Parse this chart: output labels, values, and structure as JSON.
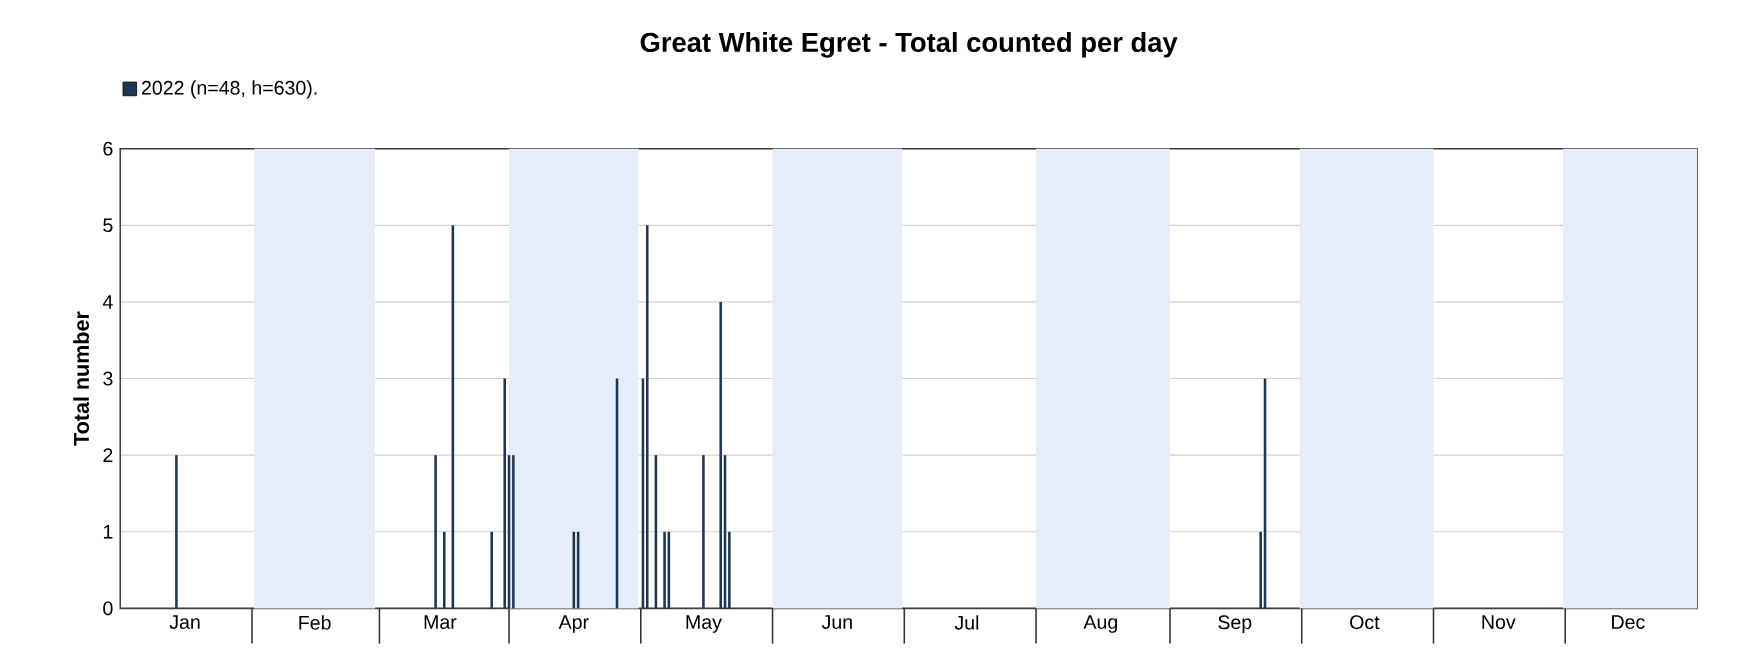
{
  "chart_data": {
    "type": "bar",
    "title": "Great White Egret - Total counted per day",
    "ylabel": "Total number",
    "x": [
      "2022-01-14",
      "2022-03-15",
      "2022-03-17",
      "2022-03-19",
      "2022-03-28",
      "2022-03-31",
      "2022-04-01",
      "2022-04-02",
      "2022-04-16",
      "2022-04-17",
      "2022-04-26",
      "2022-05-02",
      "2022-05-03",
      "2022-05-05",
      "2022-05-07",
      "2022-05-08",
      "2022-05-16",
      "2022-05-20",
      "2022-05-21",
      "2022-05-22",
      "2022-09-22",
      "2022-09-23"
    ],
    "series": [
      {
        "name": "2022 (n=48, h=630).",
        "color": "#1f3550",
        "values": [
          2,
          2,
          1,
          5,
          1,
          3,
          2,
          2,
          1,
          1,
          3,
          3,
          5,
          2,
          1,
          1,
          2,
          4,
          2,
          1,
          1,
          3
        ]
      }
    ],
    "xlim": [
      "2022-01-01",
      "2023-01-01"
    ],
    "xticks": [
      {
        "value": "2022-01-16",
        "label": "Jan"
      },
      {
        "value": "2022-02-15",
        "label": "Feb"
      },
      {
        "value": "2022-03-16",
        "label": "Mar"
      },
      {
        "value": "2022-04-16",
        "label": "Apr"
      },
      {
        "value": "2022-05-16",
        "label": "May"
      },
      {
        "value": "2022-06-16",
        "label": "Jun"
      },
      {
        "value": "2022-07-16",
        "label": "Jul"
      },
      {
        "value": "2022-08-16",
        "label": "Aug"
      },
      {
        "value": "2022-09-16",
        "label": "Sep"
      },
      {
        "value": "2022-10-16",
        "label": "Oct"
      },
      {
        "value": "2022-11-16",
        "label": "Nov"
      },
      {
        "value": "2022-12-16",
        "label": "Dec"
      }
    ],
    "ylim": [
      0,
      6
    ],
    "yticks": [
      0,
      1,
      2,
      3,
      4,
      5,
      6
    ],
    "grid": "y",
    "legend": "top left",
    "bands": [
      {
        "axis": "x",
        "from": "2022-02-01",
        "to": "2022-03-01",
        "color": "#e6edf8"
      },
      {
        "axis": "x",
        "from": "2022-04-01",
        "to": "2022-05-01",
        "color": "#e6edf8"
      },
      {
        "axis": "x",
        "from": "2022-06-01",
        "to": "2022-07-01",
        "color": "#e6edf8"
      },
      {
        "axis": "x",
        "from": "2022-08-01",
        "to": "2022-09-01",
        "color": "#e6edf8"
      },
      {
        "axis": "x",
        "from": "2022-10-01",
        "to": "2022-11-01",
        "color": "#e6edf8"
      },
      {
        "axis": "x",
        "from": "2022-12-01",
        "to": "2023-01-01",
        "color": "#e6edf8"
      }
    ]
  }
}
